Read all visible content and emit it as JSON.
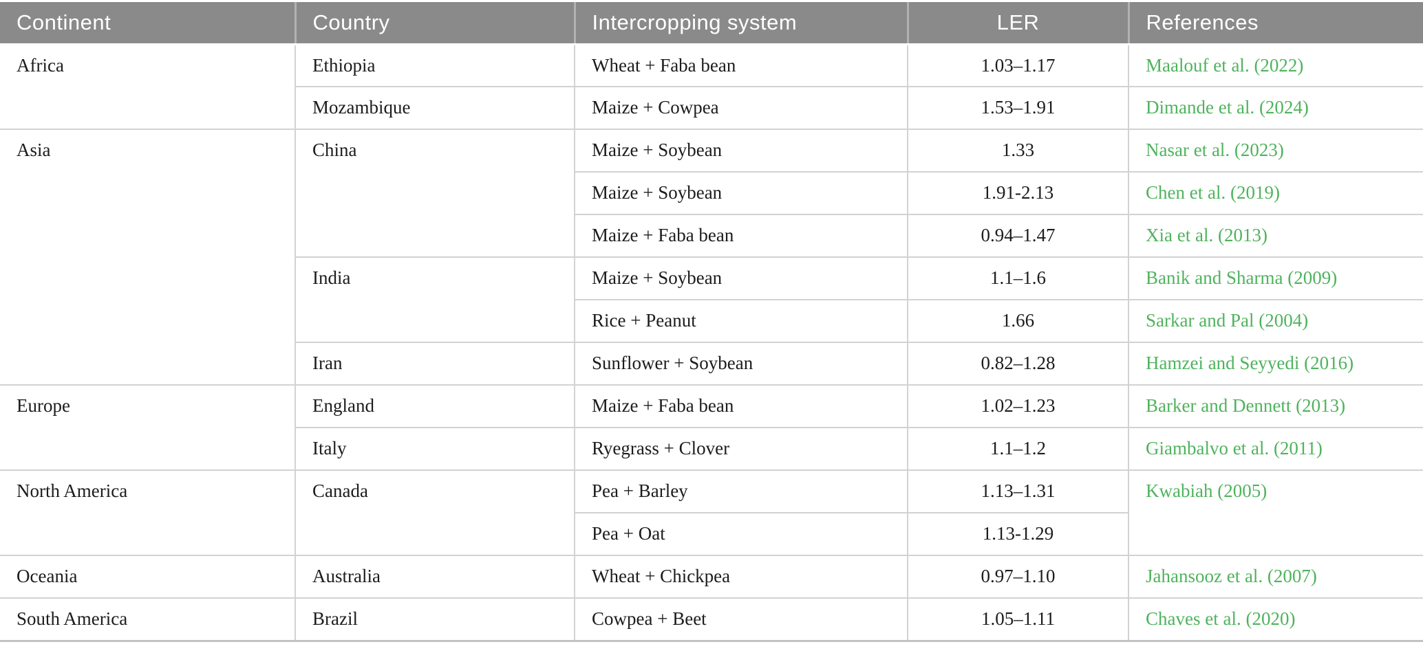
{
  "colors": {
    "header_bg": "#8a8a8a",
    "header_text": "#ffffff",
    "header_divider": "#b2b2b2",
    "body_text": "#1c1c1c",
    "row_border": "#d2d2d2",
    "bottom_border": "#c3c3c3",
    "reference_link_green": "#4fb35d"
  },
  "table": {
    "columns": [
      {
        "label": "Continent"
      },
      {
        "label": "Country"
      },
      {
        "label": "Intercropping system"
      },
      {
        "label": "LER"
      },
      {
        "label": "References"
      }
    ],
    "cell_names": [
      "continent-cell",
      "country-cell",
      "intercropping-system-cell",
      "ler-cell",
      "reference-link"
    ],
    "rows": [
      [
        {
          "col": 0,
          "text": "Africa",
          "rowspan": 2
        },
        {
          "col": 1,
          "text": "Ethiopia"
        },
        {
          "col": 2,
          "text": "Wheat + Faba bean"
        },
        {
          "col": 3,
          "text": "1.03–1.17"
        },
        {
          "col": 4,
          "text": "Maalouf et al. (2022)"
        }
      ],
      [
        {
          "col": 1,
          "text": "Mozambique"
        },
        {
          "col": 2,
          "text": "Maize + Cowpea"
        },
        {
          "col": 3,
          "text": "1.53–1.91"
        },
        {
          "col": 4,
          "text": "Dimande et al. (2024)"
        }
      ],
      [
        {
          "col": 0,
          "text": "Asia",
          "rowspan": 6
        },
        {
          "col": 1,
          "text": "China",
          "rowspan": 3
        },
        {
          "col": 2,
          "text": "Maize + Soybean"
        },
        {
          "col": 3,
          "text": "1.33"
        },
        {
          "col": 4,
          "text": "Nasar et al. (2023)"
        }
      ],
      [
        {
          "col": 2,
          "text": "Maize + Soybean"
        },
        {
          "col": 3,
          "text": "1.91-2.13"
        },
        {
          "col": 4,
          "text": "Chen et al. (2019)"
        }
      ],
      [
        {
          "col": 2,
          "text": "Maize + Faba bean"
        },
        {
          "col": 3,
          "text": "0.94–1.47"
        },
        {
          "col": 4,
          "text": "Xia et al. (2013)"
        }
      ],
      [
        {
          "col": 1,
          "text": "India",
          "rowspan": 2
        },
        {
          "col": 2,
          "text": "Maize + Soybean"
        },
        {
          "col": 3,
          "text": "1.1–1.6"
        },
        {
          "col": 4,
          "text": "Banik and Sharma (2009)"
        }
      ],
      [
        {
          "col": 2,
          "text": "Rice + Peanut"
        },
        {
          "col": 3,
          "text": "1.66"
        },
        {
          "col": 4,
          "text": "Sarkar and Pal (2004)"
        }
      ],
      [
        {
          "col": 1,
          "text": "Iran"
        },
        {
          "col": 2,
          "text": "Sunflower + Soybean"
        },
        {
          "col": 3,
          "text": "0.82–1.28"
        },
        {
          "col": 4,
          "text": "Hamzei and Seyyedi (2016)"
        }
      ],
      [
        {
          "col": 0,
          "text": "Europe",
          "rowspan": 2
        },
        {
          "col": 1,
          "text": "England"
        },
        {
          "col": 2,
          "text": "Maize + Faba bean"
        },
        {
          "col": 3,
          "text": "1.02–1.23"
        },
        {
          "col": 4,
          "text": "Barker and Dennett (2013)"
        }
      ],
      [
        {
          "col": 1,
          "text": "Italy"
        },
        {
          "col": 2,
          "text": "Ryegrass + Clover"
        },
        {
          "col": 3,
          "text": "1.1–1.2"
        },
        {
          "col": 4,
          "text": "Giambalvo et al. (2011)"
        }
      ],
      [
        {
          "col": 0,
          "text": "North America",
          "rowspan": 2
        },
        {
          "col": 1,
          "text": "Canada",
          "rowspan": 2
        },
        {
          "col": 2,
          "text": "Pea + Barley"
        },
        {
          "col": 3,
          "text": "1.13–1.31"
        },
        {
          "col": 4,
          "text": "Kwabiah (2005)",
          "rowspan": 2
        }
      ],
      [
        {
          "col": 2,
          "text": "Pea + Oat"
        },
        {
          "col": 3,
          "text": "1.13-1.29"
        }
      ],
      [
        {
          "col": 0,
          "text": "Oceania"
        },
        {
          "col": 1,
          "text": "Australia"
        },
        {
          "col": 2,
          "text": "Wheat + Chickpea"
        },
        {
          "col": 3,
          "text": "0.97–1.10"
        },
        {
          "col": 4,
          "text": "Jahansooz et al. (2007)"
        }
      ],
      [
        {
          "col": 0,
          "text": "South America"
        },
        {
          "col": 1,
          "text": "Brazil"
        },
        {
          "col": 2,
          "text": "Cowpea + Beet"
        },
        {
          "col": 3,
          "text": "1.05–1.11"
        },
        {
          "col": 4,
          "text": "Chaves et al. (2020)"
        }
      ]
    ]
  }
}
